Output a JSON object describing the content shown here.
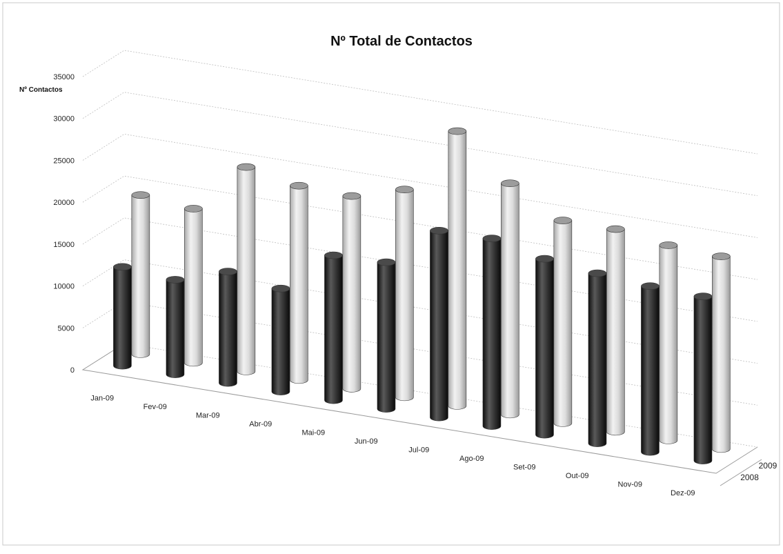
{
  "chart_data": {
    "type": "bar",
    "style": "3d-cylinder",
    "title": "Nº Total de Contactos",
    "ylabel": "Nº Contactos",
    "xlabel": "",
    "ylim": [
      0,
      35000
    ],
    "yticks": [
      0,
      5000,
      10000,
      15000,
      20000,
      25000,
      30000,
      35000
    ],
    "categories": [
      "Jan-09",
      "Fev-09",
      "Mar-09",
      "Abr-09",
      "Mai-09",
      "Jun-09",
      "Jul-09",
      "Ago-09",
      "Set-09",
      "Out-09",
      "Nov-09",
      "Dez-09"
    ],
    "series": [
      {
        "name": "2008",
        "color": "#2b2b2b",
        "values": [
          11800,
          11300,
          13300,
          12300,
          17300,
          17500,
          22300,
          22400,
          21000,
          20300,
          19800,
          19600
        ]
      },
      {
        "name": "2009",
        "color": "#e0e0e0",
        "values": [
          19000,
          18400,
          24400,
          23200,
          23000,
          24800,
          32800,
          27600,
          24200,
          24200,
          23300,
          23000
        ]
      }
    ],
    "grid": true,
    "legend": "series labels on depth axis (right)"
  }
}
